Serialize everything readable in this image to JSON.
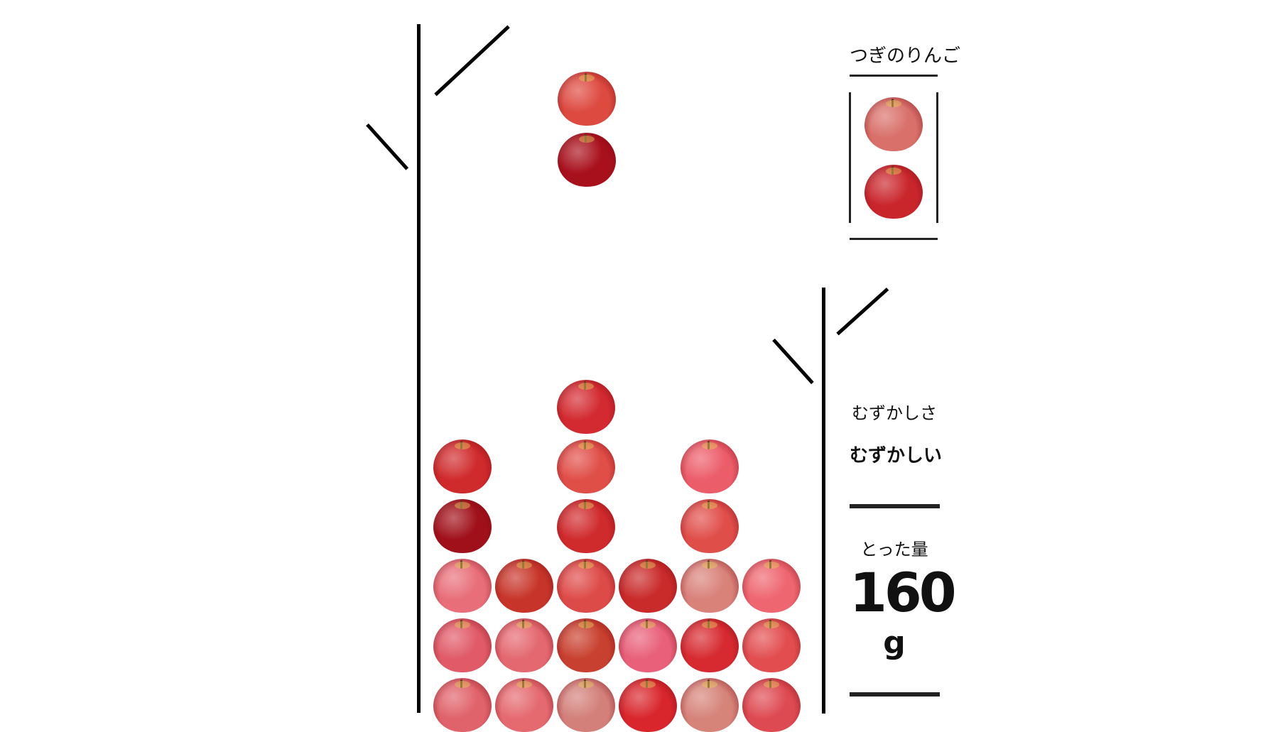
{
  "next": {
    "label": "つぎのりんご",
    "apples": [
      "#d9706a",
      "#c9262c"
    ]
  },
  "difficulty": {
    "label": "むずかしさ",
    "value": "むずかしい"
  },
  "harvest": {
    "label": "とった量",
    "value": "160",
    "unit": "g"
  },
  "falling_piece": {
    "column": 3,
    "apples": [
      "#dd4a40",
      "#a8101c"
    ]
  },
  "board": {
    "columns": 6,
    "stacks": [
      [
        "#e0626a",
        "#e05a68",
        "#e86f7a",
        "#a0101a",
        "#cf2a2c"
      ],
      [
        "#e46a70",
        "#e46870",
        "#c7352a"
      ],
      [
        "#d3807a",
        "#c8402f",
        "#dd4b48",
        "#cf2a2c",
        "#e04e48",
        "#d22a30"
      ],
      [
        "#d8262c",
        "#e8607a",
        "#c92a2a"
      ],
      [
        "#d6847a",
        "#d62a30",
        "#d9827a",
        "#e04e4a",
        "#ec5d6a"
      ],
      [
        "#de4a52",
        "#e24e50",
        "#ee6670"
      ]
    ]
  }
}
